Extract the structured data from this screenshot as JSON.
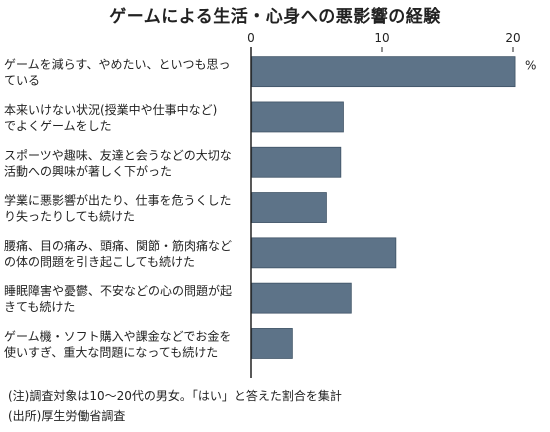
{
  "title": "ゲームによる生活・心身への悪影響の経験",
  "unit": "%",
  "notes": [
    "(注)調査対象は10〜20代の男女。「はい」と答えた割合を集計",
    "(出所)厚生労働省調査"
  ],
  "colors": {
    "bar": "#5d7388",
    "bar_stroke": "#3f5366",
    "axis": "#222222"
  },
  "chart_data": {
    "type": "bar",
    "orientation": "horizontal",
    "title": "ゲームによる生活・心身への悪影響の経験",
    "xlabel": "",
    "ylabel": "",
    "unit": "%",
    "xlim": [
      0,
      22
    ],
    "ticks": [
      0,
      10,
      20
    ],
    "grid": false,
    "categories": [
      [
        "ゲームを減らす、やめたい、といつも思っ",
        "ている"
      ],
      [
        "本来いけない状況(授業中や仕事中など)",
        "でよくゲームをした"
      ],
      [
        "スポーツや趣味、友達と会うなどの大切な",
        "活動への興味が著しく下がった"
      ],
      [
        "学業に悪影響が出たり、仕事を危うくした",
        "り失ったりしても続けた"
      ],
      [
        "腰痛、目の痛み、頭痛、関節・筋肉痛など",
        "の体の問題を引き起こしても続けた"
      ],
      [
        "睡眠障害や憂鬱、不安などの心の問題が起",
        "きても続けた"
      ],
      [
        "ゲーム機・ソフト購入や課金などでお金を",
        "使いすぎ、重大な問題になっても続けた"
      ]
    ],
    "values": [
      20.1,
      7.0,
      6.8,
      5.7,
      11.0,
      7.6,
      3.1
    ]
  }
}
